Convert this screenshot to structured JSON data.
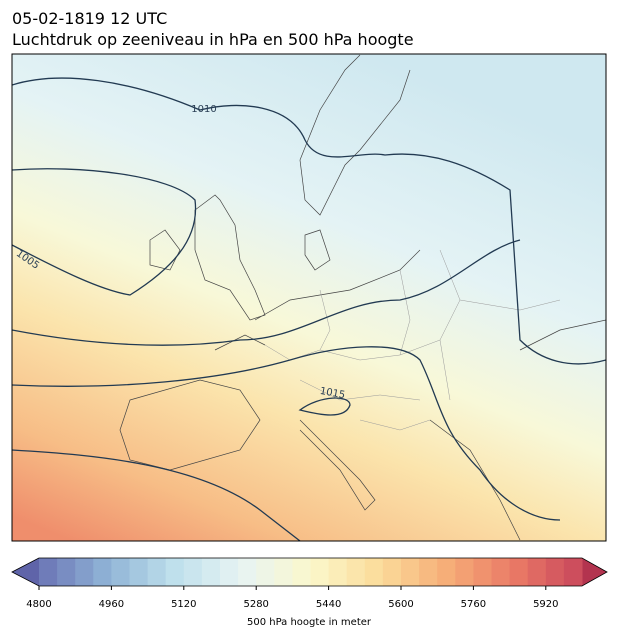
{
  "title": "05-02-1819 12 UTC",
  "subtitle": "Luchtdruk op zeeniveau in hPa en 500 hPa hoogte",
  "contour_labels": [
    "1010",
    "1005",
    "1015"
  ],
  "colorbar": {
    "label": "500 hPa hoogte in meter",
    "lim": [
      4800,
      6000
    ],
    "ticks": [
      4800,
      4960,
      5120,
      5280,
      5440,
      5600,
      5760,
      5920
    ],
    "bins": 30,
    "colors": [
      "#6a74b5",
      "#8fb3d6",
      "#bfe0ec",
      "#e8f4f3",
      "#fbf8cc",
      "#fbdc9b",
      "#f6ae78",
      "#ea7a66",
      "#c9475c"
    ],
    "under_color": "#5f64a9",
    "over_color": "#b3344f"
  }
}
